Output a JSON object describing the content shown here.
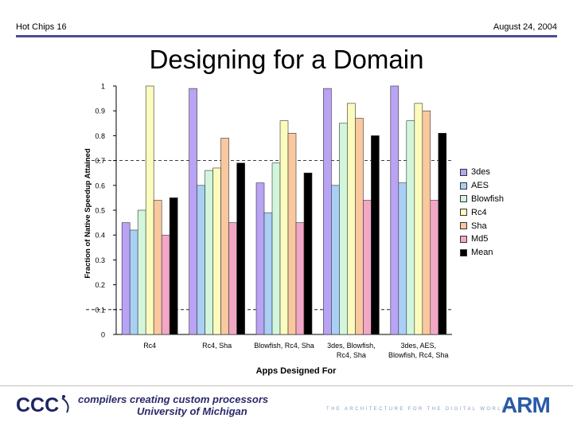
{
  "header": {
    "left": "Hot Chips 16",
    "right": "August 24, 2004"
  },
  "title": "Designing for a Domain",
  "footer": {
    "logo_text": "CCC",
    "line1": "compilers creating custom processors",
    "line2": "University of Michigan",
    "tagline": "THE ARCHITECTURE FOR THE DIGITAL WORLD®",
    "arm_logo": "ARM"
  },
  "colors": {
    "3des": "#b9a3f4",
    "AES": "#a9cff4",
    "Blowfish": "#d2f6dc",
    "Rc4": "#fbfbbd",
    "Sha": "#f9c89e",
    "Md5": "#f3a7c7",
    "Mean": "#000000"
  },
  "chart_data": {
    "type": "bar",
    "title": "Designing for a Domain",
    "xlabel": "Apps Designed For",
    "ylabel": "Fraction of Native Speedup Attained",
    "ylim": [
      0,
      1
    ],
    "yticks": [
      "0",
      "0.1",
      "0.2",
      "0.3",
      "0.4",
      "0.5",
      "0.6",
      "0.7",
      "0.8",
      "0.9",
      "1"
    ],
    "reference_lines": [
      0.1,
      0.7
    ],
    "categories": [
      [
        "Rc4"
      ],
      [
        "Rc4, Sha"
      ],
      [
        "Blowfish, Rc4, Sha"
      ],
      [
        "3des, Blowfish,",
        "Rc4, Sha"
      ],
      [
        "3des, AES,",
        "Blowfish, Rc4, Sha"
      ]
    ],
    "series": [
      {
        "name": "3des",
        "values": [
          0.45,
          0.99,
          0.61,
          0.99,
          1.0
        ]
      },
      {
        "name": "AES",
        "values": [
          0.42,
          0.6,
          0.49,
          0.6,
          0.61
        ]
      },
      {
        "name": "Blowfish",
        "values": [
          0.5,
          0.66,
          0.69,
          0.85,
          0.86
        ]
      },
      {
        "name": "Rc4",
        "values": [
          1.0,
          0.67,
          0.86,
          0.93,
          0.93
        ]
      },
      {
        "name": "Sha",
        "values": [
          0.54,
          0.79,
          0.81,
          0.87,
          0.9
        ]
      },
      {
        "name": "Md5",
        "values": [
          0.4,
          0.45,
          0.45,
          0.54,
          0.54
        ]
      },
      {
        "name": "Mean",
        "values": [
          0.55,
          0.69,
          0.65,
          0.8,
          0.81
        ]
      }
    ],
    "legend_position": "right"
  }
}
